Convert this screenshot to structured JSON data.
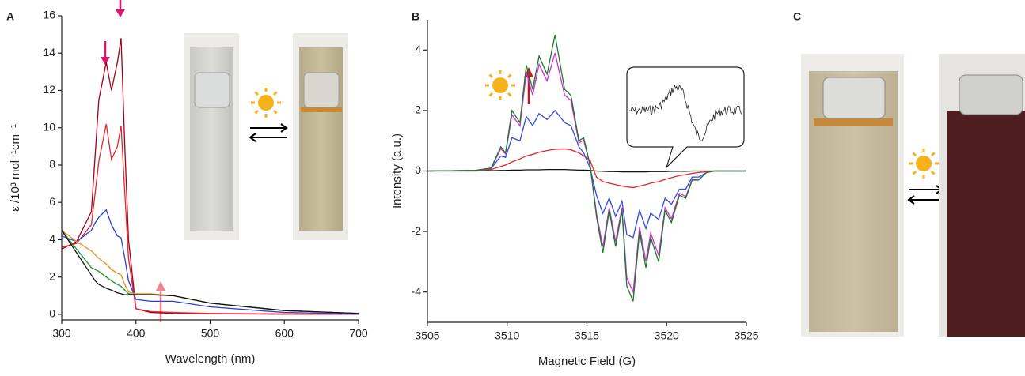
{
  "chart_data": [
    {
      "type": "line",
      "label": "A",
      "x_label": "Wavelength (nm)",
      "y_label": "ε /10³ mol⁻¹cm⁻¹",
      "x": [
        300,
        320,
        340,
        345,
        350,
        360,
        367,
        375,
        380,
        385,
        390,
        400,
        420,
        450,
        500,
        600,
        700
      ],
      "xlim": [
        300,
        700
      ],
      "ylim": [
        -0.3,
        16
      ],
      "xticks": [
        300,
        400,
        500,
        600,
        700
      ],
      "yticks": [
        0,
        2,
        4,
        6,
        8,
        10,
        12,
        14,
        16
      ],
      "series": [
        {
          "color": "#a3001c",
          "values": [
            3.5,
            3.9,
            5.5,
            8.5,
            11.5,
            13.5,
            12.0,
            13.5,
            14.8,
            9.0,
            4.0,
            0.3,
            0.1,
            0.05,
            0.03,
            0.01,
            0
          ]
        },
        {
          "color": "#e3262b",
          "values": [
            3.6,
            3.8,
            4.8,
            6.5,
            8.2,
            10.2,
            8.3,
            9.0,
            10.1,
            6.5,
            3.0,
            0.3,
            0.15,
            0.1,
            0.05,
            0.02,
            0
          ]
        },
        {
          "color": "#2b3de0",
          "values": [
            4.2,
            3.9,
            4.5,
            4.9,
            5.2,
            5.6,
            4.8,
            4.2,
            4.1,
            3.0,
            1.8,
            0.8,
            0.7,
            0.7,
            0.4,
            0.1,
            0.02
          ]
        },
        {
          "color": "#f08a18",
          "values": [
            4.5,
            3.9,
            3.4,
            3.2,
            3.0,
            2.7,
            2.4,
            2.2,
            2.1,
            1.6,
            1.2,
            1.1,
            1.1,
            1.0,
            0.6,
            0.2,
            0.05
          ]
        },
        {
          "color": "#1f8f2a",
          "values": [
            4.5,
            3.5,
            2.5,
            2.4,
            2.3,
            2.0,
            1.8,
            1.6,
            1.5,
            1.3,
            1.1,
            1.05,
            1.05,
            1.0,
            0.6,
            0.2,
            0.05
          ]
        },
        {
          "color": "#111111",
          "values": [
            4.5,
            3.3,
            2.1,
            1.8,
            1.6,
            1.4,
            1.3,
            1.15,
            1.1,
            1.05,
            1.05,
            1.05,
            1.05,
            1.0,
            0.6,
            0.2,
            0.05
          ]
        }
      ]
    },
    {
      "type": "line",
      "label": "B",
      "x_label": "Magnetic Field (G)",
      "y_label": "Intensity (a.u.)",
      "x": [
        3505,
        3508,
        3509,
        3509.6,
        3509.9,
        3510.3,
        3510.8,
        3511.2,
        3511.6,
        3512.0,
        3512.5,
        3513.0,
        3513.6,
        3514.0,
        3514.5,
        3514.8,
        3515.2,
        3515.6,
        3516.0,
        3516.4,
        3516.8,
        3517.2,
        3517.5,
        3517.9,
        3518.3,
        3518.7,
        3519.0,
        3519.5,
        3519.9,
        3520.3,
        3520.8,
        3521.2,
        3521.6,
        3522.0,
        3522.5,
        3523,
        3525
      ],
      "xlim": [
        3505,
        3525
      ],
      "ylim": [
        -5,
        5
      ],
      "xticks": [
        3505,
        3510,
        3515,
        3520,
        3525
      ],
      "yticks": [
        -4,
        -2,
        0,
        2,
        4
      ],
      "series": [
        {
          "color": "#111111",
          "values": [
            0,
            0,
            0.01,
            0.02,
            0.02,
            0.03,
            0.03,
            0.04,
            0.04,
            0.04,
            0.05,
            0.05,
            0.05,
            0.04,
            0.03,
            0.03,
            0.02,
            0,
            -0.01,
            -0.02,
            -0.02,
            -0.03,
            -0.03,
            -0.03,
            -0.03,
            -0.03,
            -0.02,
            -0.02,
            -0.02,
            -0.01,
            -0.01,
            -0.01,
            0,
            0,
            0,
            0,
            0
          ]
        },
        {
          "color": "#e3262b",
          "values": [
            0,
            0.02,
            0.05,
            0.15,
            0.2,
            0.3,
            0.4,
            0.5,
            0.55,
            0.62,
            0.68,
            0.72,
            0.73,
            0.7,
            0.6,
            0.5,
            0.35,
            -0.2,
            -0.35,
            -0.4,
            -0.45,
            -0.5,
            -0.52,
            -0.55,
            -0.5,
            -0.45,
            -0.4,
            -0.35,
            -0.28,
            -0.22,
            -0.15,
            -0.12,
            -0.08,
            -0.05,
            -0.02,
            0,
            0
          ]
        },
        {
          "color": "#3348e8",
          "values": [
            0,
            0.02,
            0.08,
            0.5,
            0.45,
            1.1,
            1.0,
            1.8,
            1.5,
            1.9,
            1.7,
            2.0,
            1.6,
            1.5,
            0.8,
            0.6,
            0.1,
            -0.8,
            -1.4,
            -0.9,
            -1.5,
            -1.0,
            -2.1,
            -2.2,
            -1.3,
            -1.9,
            -1.4,
            -1.6,
            -0.9,
            -1.1,
            -0.6,
            -0.6,
            -0.2,
            -0.2,
            -0.05,
            0,
            0
          ]
        },
        {
          "color": "#d62ad6",
          "values": [
            0,
            0.02,
            0.09,
            0.74,
            0.56,
            1.86,
            1.49,
            3.26,
            2.51,
            3.53,
            2.98,
            3.9,
            2.51,
            2.33,
            0.93,
            1.02,
            0.19,
            -1.4,
            -2.51,
            -1.21,
            -2.33,
            -1.21,
            -3.53,
            -4.0,
            -1.86,
            -2.98,
            -2.05,
            -2.79,
            -1.21,
            -1.58,
            -0.74,
            -0.84,
            -0.28,
            -0.28,
            -0.05,
            0,
            0
          ]
        },
        {
          "color": "#1b7a2a",
          "values": [
            0,
            0.02,
            0.1,
            0.8,
            0.6,
            2.0,
            1.6,
            3.5,
            2.7,
            3.8,
            3.2,
            4.5,
            2.7,
            2.5,
            1.0,
            1.1,
            0.2,
            -1.5,
            -2.7,
            -1.3,
            -2.5,
            -1.3,
            -3.8,
            -4.3,
            -2.0,
            -3.2,
            -2.2,
            -3.0,
            -1.3,
            -1.7,
            -0.8,
            -0.9,
            -0.3,
            -0.3,
            -0.05,
            0,
            0
          ]
        }
      ]
    }
  ],
  "photo_panel": {
    "label": "C"
  }
}
